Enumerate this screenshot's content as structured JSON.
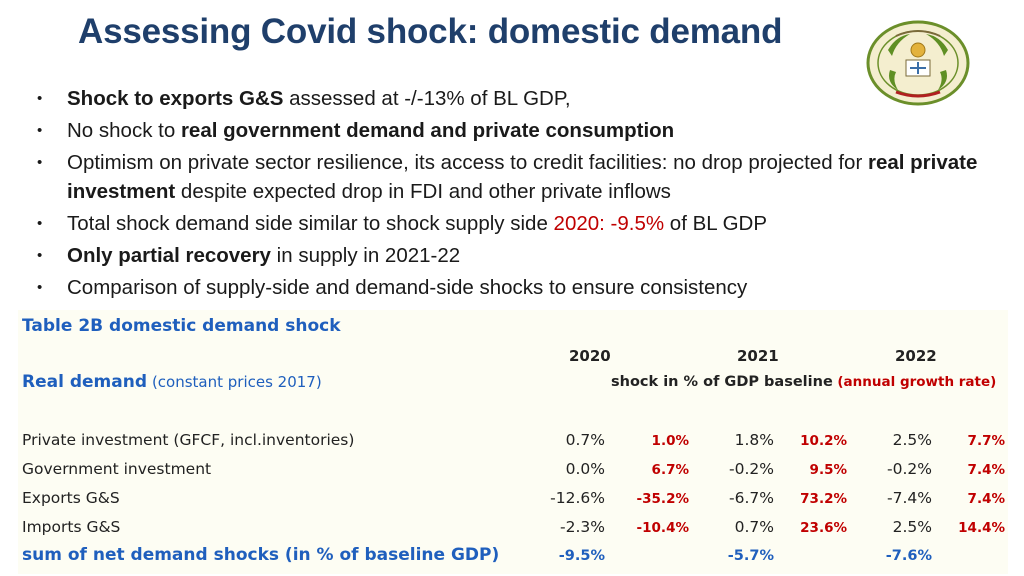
{
  "title": "Assessing Covid shock: domestic demand",
  "emblem": {
    "icon": "national-emblem-seal"
  },
  "bullets": {
    "b1": {
      "bold": "Shock to exports G&S",
      "rest": " assessed at -/-13% of BL GDP,"
    },
    "b2": {
      "pre": "No shock to ",
      "bold": "real government demand and private consumption"
    },
    "b3": {
      "pre": "Optimism on private sector resilience, its access to credit facilities: no drop projected for ",
      "bold": "real private investment",
      "post": " despite expected drop in FDI and other private inflows"
    },
    "b4": {
      "pre": "Total shock demand side similar to shock supply side ",
      "red": "2020: -9.5%",
      "post": " of BL GDP"
    },
    "b5": {
      "bold": "Only partial recovery",
      "rest": " in supply in 2021-22"
    },
    "b6": {
      "text": "Comparison of supply-side and demand-side shocks to ensure consistency"
    }
  },
  "table": {
    "caption": "Table 2B domestic demand shock",
    "years": [
      "2020",
      "2021",
      "2022"
    ],
    "subheader_label": "Real demand",
    "subheader_note": "(constant prices 2017)",
    "shock_label": "shock in % of GDP baseline",
    "growth_label": "(annual growth rate)",
    "rows": [
      {
        "label": "Private investment (GFCF, incl.inventories)",
        "s2020": "0.7%",
        "g2020": "1.0%",
        "s2021": "1.8%",
        "g2021": "10.2%",
        "s2022": "2.5%",
        "g2022": "7.7%"
      },
      {
        "label": "Government investment",
        "s2020": "0.0%",
        "g2020": "6.7%",
        "s2021": "-0.2%",
        "g2021": "9.5%",
        "s2022": "-0.2%",
        "g2022": "7.4%"
      },
      {
        "label": "Exports G&S",
        "s2020": "-12.6%",
        "g2020": "-35.2%",
        "s2021": "-6.7%",
        "g2021": "73.2%",
        "s2022": "-7.4%",
        "g2022": "7.4%"
      },
      {
        "label": "Imports G&S",
        "s2020": "-2.3%",
        "g2020": "-10.4%",
        "s2021": "0.7%",
        "g2021": "23.6%",
        "s2022": "2.5%",
        "g2022": "14.4%"
      }
    ],
    "total": {
      "label": "sum of net demand shocks (in % of baseline GDP)",
      "s2020": "-9.5%",
      "s2021": "-5.7%",
      "s2022": "-7.6%"
    }
  }
}
